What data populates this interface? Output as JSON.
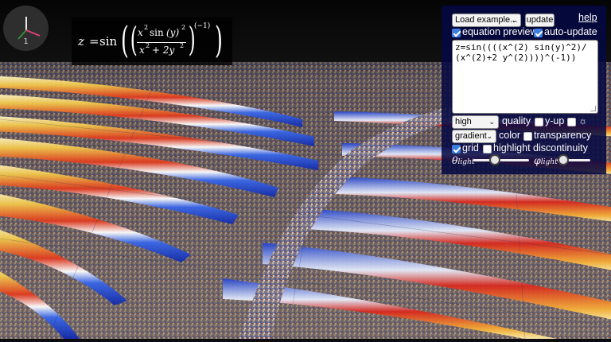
{
  "gizmo": {
    "label": "1"
  },
  "equation_preview": {
    "lhs": "z",
    "eq": "=",
    "func": "sin",
    "num_a": "x",
    "num_a_exp": "2",
    "num_b": "sin",
    "num_c": "(y)",
    "num_c_exp": "2",
    "den_a": "x",
    "den_a_exp": "2",
    "den_b": "+ 2y",
    "den_b_exp": "2",
    "outer_exp": "(−1)"
  },
  "panel": {
    "example_select": "Load example...",
    "update_button": "update",
    "help_link": "help",
    "equation_preview_label": "equation preview",
    "equation_preview_checked": true,
    "auto_update_label": "auto-update",
    "auto_update_checked": true,
    "expression": "z=sin((((x^(2) sin(y)^2)/(x^(2)+2 y^(2))))^(-1))",
    "quality_select": "high",
    "quality_label": "quality",
    "yup_label": "y-up",
    "yup_checked": false,
    "sun_label": "☼",
    "sun_checked": false,
    "color_select": "gradient",
    "color_label": "color",
    "transparency_label": "transparency",
    "transparency_checked": false,
    "grid_label": "grid",
    "grid_checked": true,
    "discontinuity_label": "highlight discontinuity",
    "discontinuity_checked": false,
    "theta_symbol": "θ",
    "theta_sub": "light",
    "theta_value": 0.35,
    "phi_symbol": "φ",
    "phi_sub": "light",
    "phi_value": 0.05
  },
  "colors": {
    "panel_bg": "#050842",
    "checkbox_on": "#3b7ee0",
    "surface_red": "#d8281e",
    "surface_blue": "#1a35c8",
    "surface_yellow": "#f2c94c"
  }
}
